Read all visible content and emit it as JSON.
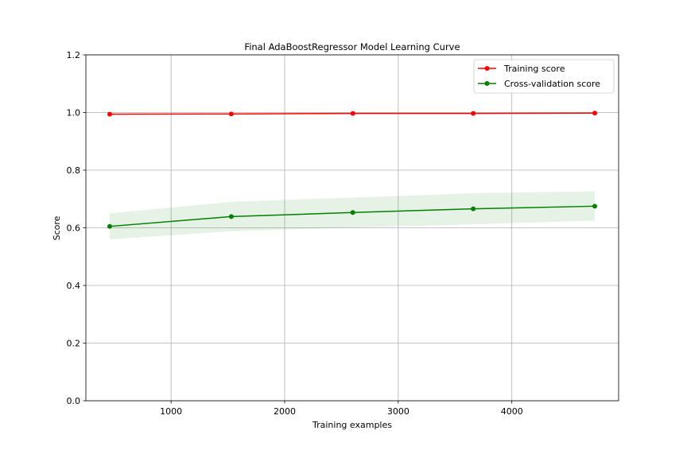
{
  "chart_data": {
    "type": "line",
    "title": "Final AdaBoostRegressor Model Learning Curve",
    "xlabel": "Training examples",
    "ylabel": "Score",
    "xlim": [
      250,
      4940
    ],
    "ylim": [
      0.0,
      1.2
    ],
    "xticks": [
      1000,
      2000,
      3000,
      4000
    ],
    "yticks": [
      0.0,
      0.2,
      0.4,
      0.6,
      0.8,
      1.0,
      1.2
    ],
    "grid": true,
    "legend_position": "top-right",
    "x": [
      460,
      1530,
      2600,
      3660,
      4730
    ],
    "series": [
      {
        "name": "Training score",
        "color": "#ff0000",
        "values": [
          0.994,
          0.995,
          0.997,
          0.997,
          0.998
        ],
        "band_lower": [
          0.992,
          0.994,
          0.996,
          0.996,
          0.997
        ],
        "band_upper": [
          0.996,
          0.996,
          0.998,
          0.998,
          0.999
        ]
      },
      {
        "name": "Cross-validation score",
        "color": "#008000",
        "values": [
          0.605,
          0.639,
          0.653,
          0.666,
          0.675
        ],
        "band_lower": [
          0.56,
          0.588,
          0.601,
          0.612,
          0.625
        ],
        "band_upper": [
          0.65,
          0.69,
          0.705,
          0.72,
          0.727
        ]
      }
    ]
  }
}
